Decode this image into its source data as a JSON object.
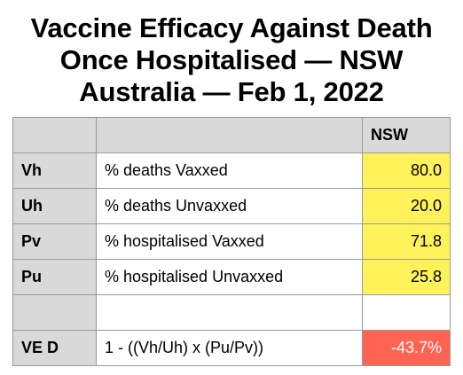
{
  "title": {
    "line1": "Vaccine Efficacy Against Death",
    "line2": "Once Hospitalised — NSW",
    "line3": "Australia — Feb 1, 2022"
  },
  "table": {
    "header": {
      "key": "",
      "description": "",
      "value": "NSW"
    },
    "rows": [
      {
        "key": "Vh",
        "description": "% deaths Vaxxed",
        "value": "80.0"
      },
      {
        "key": "Uh",
        "description": "% deaths Unvaxxed",
        "value": "20.0"
      },
      {
        "key": "Pv",
        "description": "% hospitalised Vaxxed",
        "value": "71.8"
      },
      {
        "key": "Pu",
        "description": "% hospitalised Unvaxxed",
        "value": "25.8"
      },
      {
        "key": "",
        "description": "",
        "value": ""
      },
      {
        "key": "VE D",
        "description": "1 - ((Vh/Uh) x (Pu/Pv))",
        "value": "-43.7%"
      }
    ]
  },
  "colors": {
    "header_gray": "#d9d9d9",
    "value_yellow": "#fff25a",
    "result_red": "#ff6352"
  }
}
